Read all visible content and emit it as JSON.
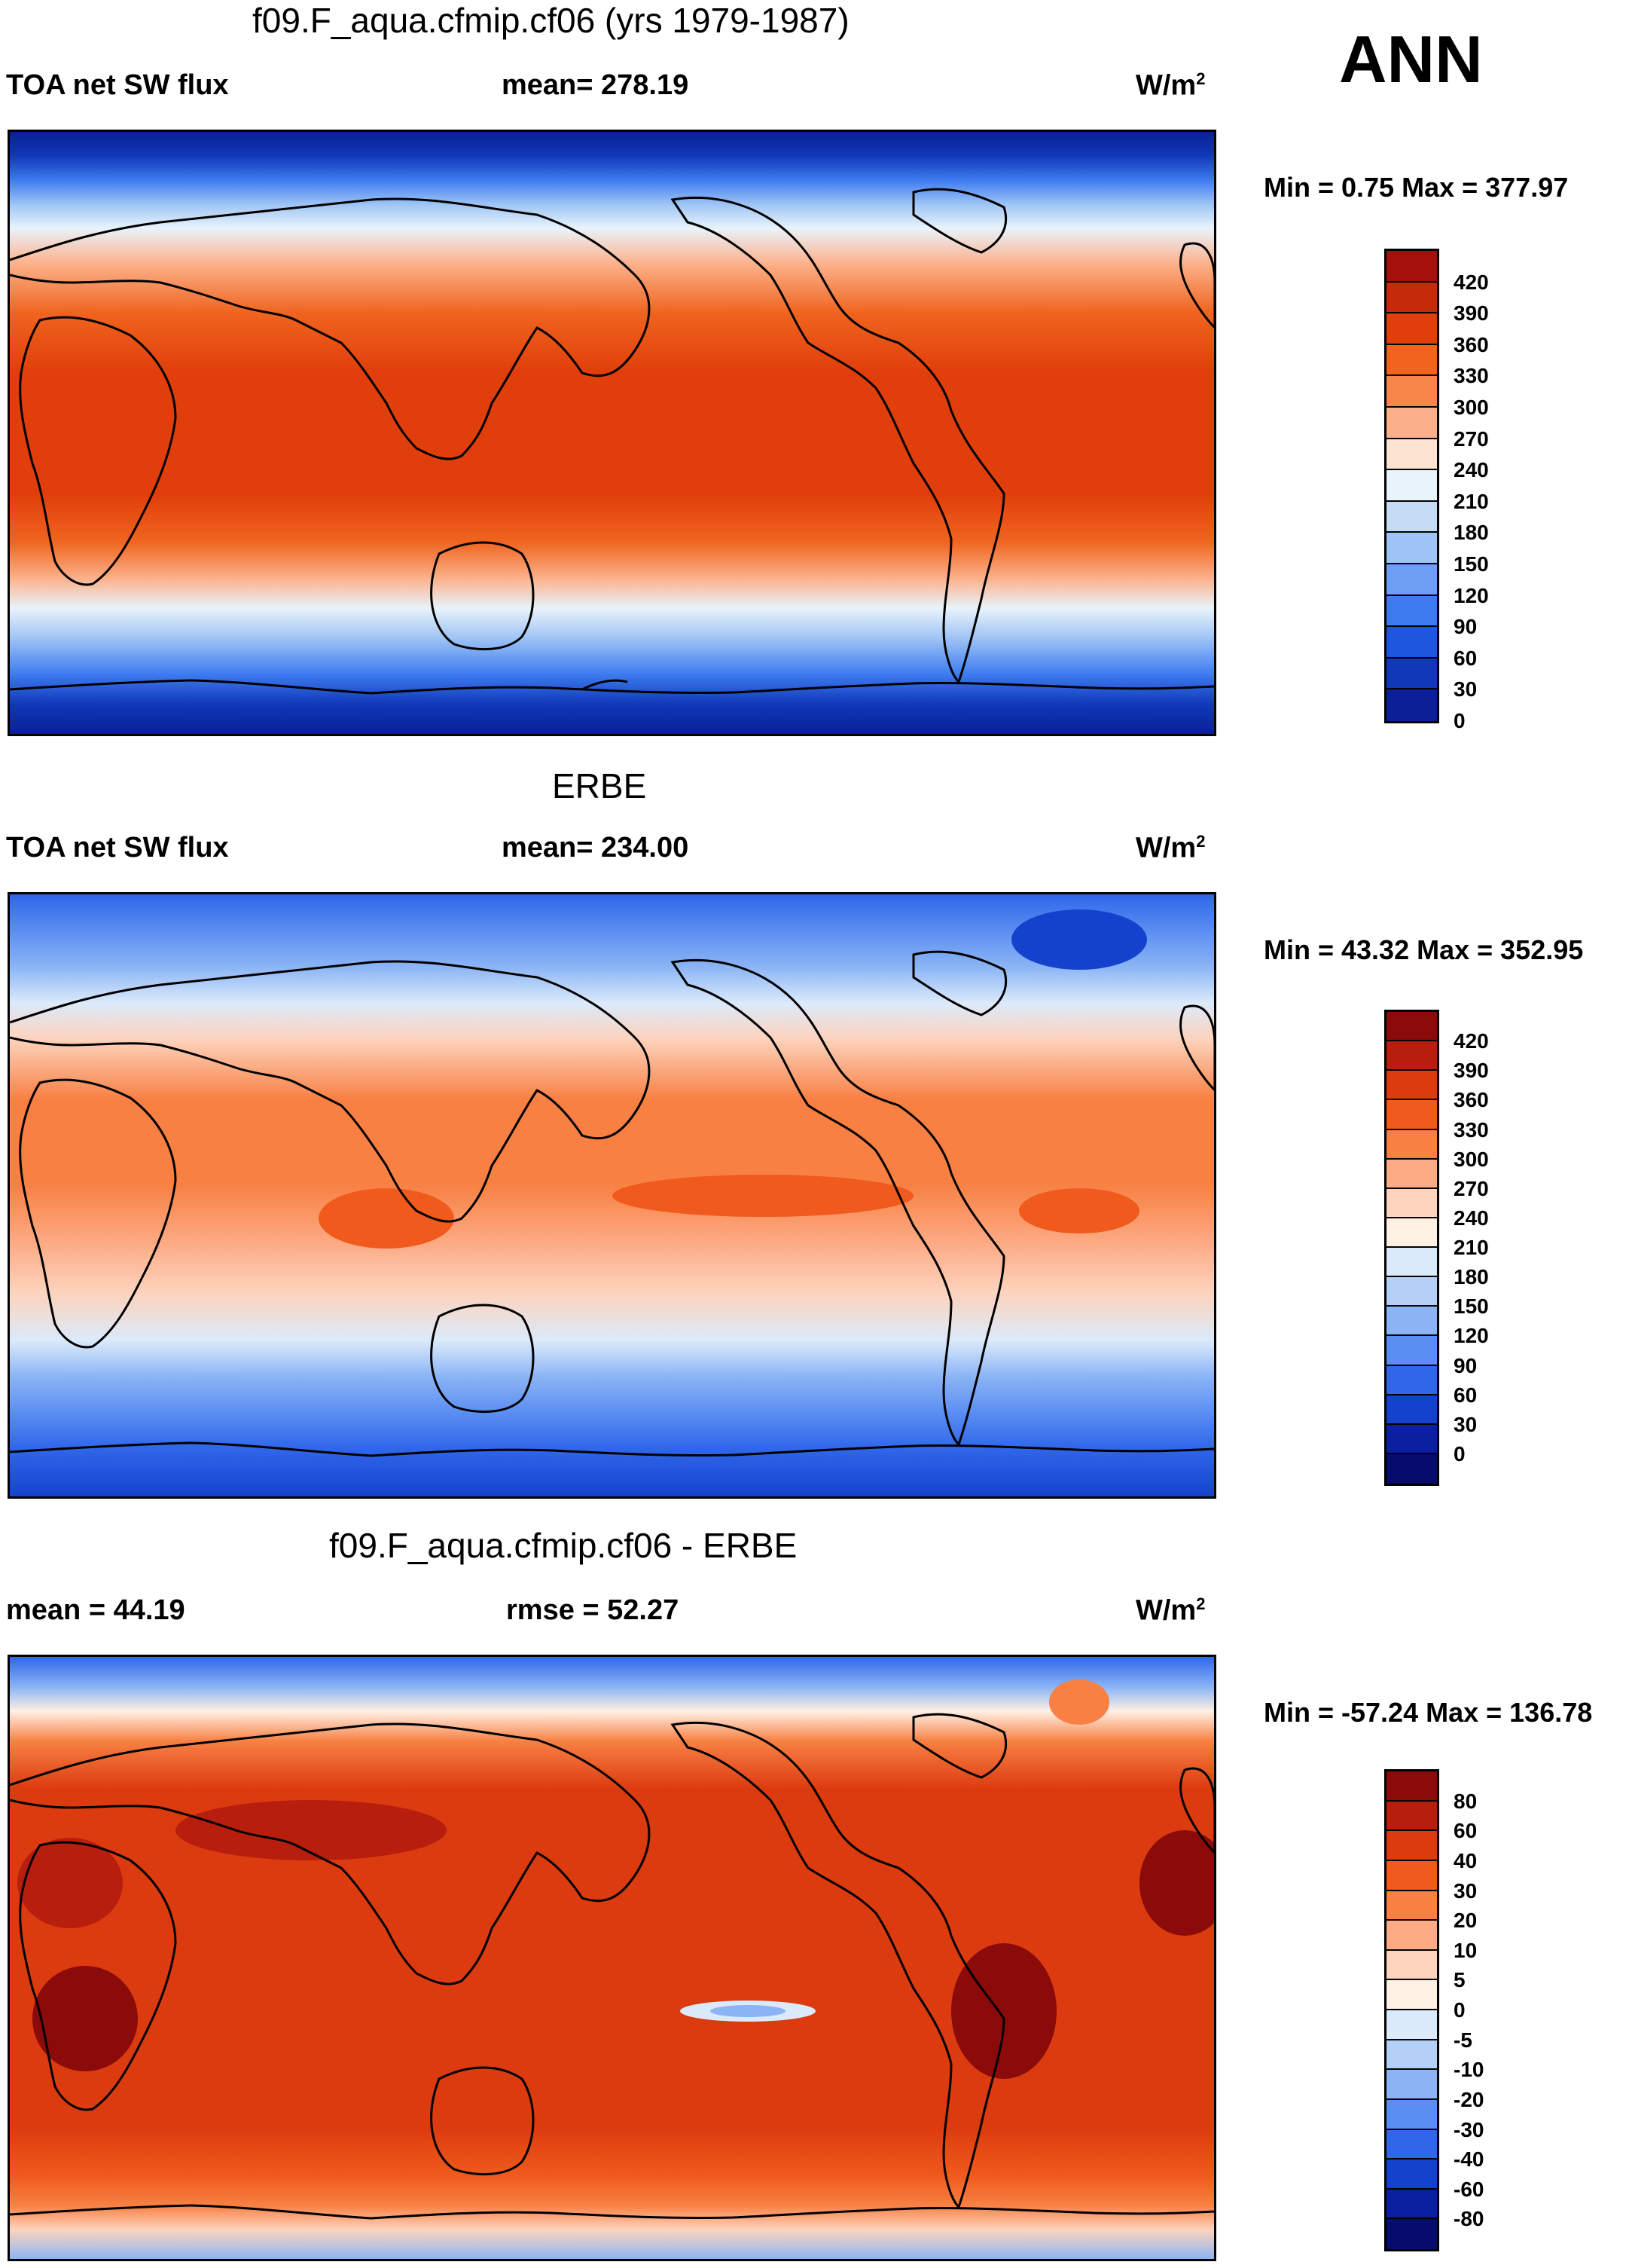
{
  "season": "ANN",
  "panels": [
    {
      "title": "f09.F_aqua.cfmip.cf06 (yrs 1979-1987)",
      "left": "TOA net SW flux",
      "center": "mean= 278.19",
      "units": "W/m",
      "units_sup": "2",
      "minmax": "Min =   0.75 Max = 377.97",
      "colorbar_labels": [
        "420",
        "390",
        "360",
        "330",
        "300",
        "270",
        "240",
        "210",
        "180",
        "150",
        "120",
        "90",
        "60",
        "30",
        "0"
      ],
      "colorbar_colors": [
        "#a50f0c",
        "#c52a0a",
        "#e03e0b",
        "#f0641f",
        "#f8864a",
        "#fcb089",
        "#fde4d2",
        "#e9f3fb",
        "#c5dcf5",
        "#9ec4f5",
        "#6da0f5",
        "#3d7bf0",
        "#1f56e0",
        "#1038b8",
        "#0b1f96"
      ]
    },
    {
      "title": "ERBE",
      "left": "TOA net SW flux",
      "center": "mean= 234.00",
      "units": "W/m",
      "units_sup": "2",
      "minmax": "Min =  43.32 Max = 352.95",
      "colorbar_labels": [
        "420",
        "390",
        "360",
        "330",
        "300",
        "270",
        "240",
        "210",
        "180",
        "150",
        "120",
        "90",
        "60",
        "30",
        "0"
      ],
      "colorbar_colors": [
        "#8b0a0a",
        "#b81e0e",
        "#dc3a0f",
        "#f05a1c",
        "#f88043",
        "#fcab85",
        "#fdd3bd",
        "#fff0e4",
        "#dbeafb",
        "#b4d0f7",
        "#8bb4f5",
        "#5a8ef2",
        "#2f66ea",
        "#1442cc",
        "#0a20a0",
        "#050c6c"
      ]
    },
    {
      "title": "f09.F_aqua.cfmip.cf06 - ERBE",
      "left": "mean =  44.19",
      "center": "rmse =  52.27",
      "units": "W/m",
      "units_sup": "2",
      "minmax": "Min = -57.24 Max = 136.78",
      "colorbar_labels": [
        "80",
        "60",
        "40",
        "30",
        "20",
        "10",
        "5",
        "0",
        "-5",
        "-10",
        "-20",
        "-30",
        "-40",
        "-60",
        "-80"
      ],
      "colorbar_colors": [
        "#8b0a0a",
        "#b81e0e",
        "#dc3a0f",
        "#f05a1c",
        "#f88043",
        "#fcab85",
        "#fdd3bd",
        "#fff0e4",
        "#dbeafb",
        "#b4d0f7",
        "#8bb4f5",
        "#5a8ef2",
        "#2f66ea",
        "#1442cc",
        "#0a20a0",
        "#050c6c"
      ]
    }
  ]
}
